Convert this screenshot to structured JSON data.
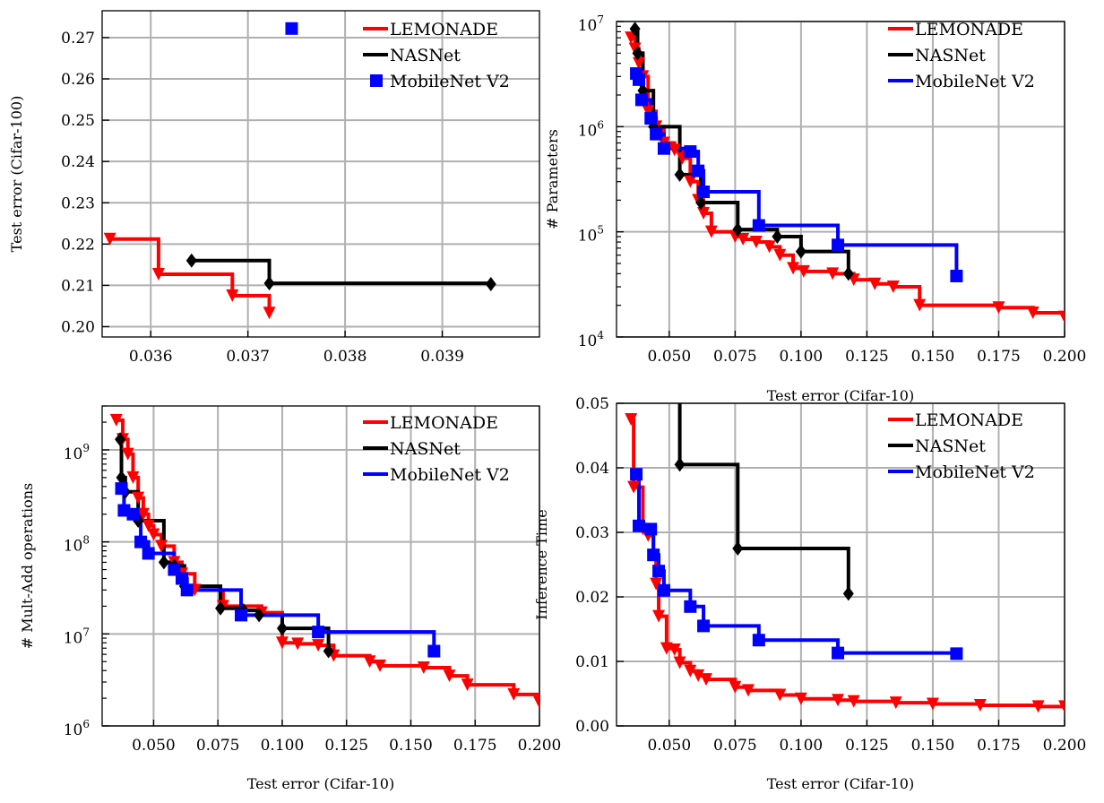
{
  "colors": {
    "LEMONADE": "#ff0000",
    "NASNet": "#000000",
    "MobileNet V2": "#0000ff"
  },
  "chart_data": [
    {
      "type": "line",
      "xlabel": "",
      "ylabel": "Test error (Cifar-100)",
      "xlim": [
        0.0355,
        0.04
      ],
      "ylim": [
        0.1975,
        0.2765
      ],
      "xscale": "linear",
      "yscale": "linear",
      "xticks": [
        0.036,
        0.037,
        0.038,
        0.039
      ],
      "xtick_labels": [
        "0.036",
        "0.037",
        "0.038",
        "0.039"
      ],
      "yticks": [
        0.2,
        0.21,
        0.22,
        0.23,
        0.24,
        0.25,
        0.26,
        0.27
      ],
      "ytick_labels": [
        "0.20",
        "0.21",
        "0.22",
        "0.23",
        "0.24",
        "0.25",
        "0.26",
        "0.27"
      ],
      "grid": true,
      "legend": "top-right",
      "series": [
        {
          "name": "LEMONADE",
          "marker": "triangle-down",
          "step": true,
          "x": [
            0.03558,
            0.03608,
            0.03684,
            0.03722
          ],
          "y": [
            0.2212,
            0.2127,
            0.2075,
            0.2033
          ]
        },
        {
          "name": "NASNet",
          "marker": "diamond",
          "step": true,
          "x": [
            0.03642,
            0.03722,
            0.0395
          ],
          "y": [
            0.216,
            0.2105,
            0.2103
          ]
        },
        {
          "name": "MobileNet V2",
          "marker": "square",
          "step": false,
          "x": [
            0.03745
          ],
          "y": [
            0.2722
          ]
        }
      ]
    },
    {
      "type": "line",
      "xlabel": "Test error (Cifar-10)",
      "ylabel": "# Parameters",
      "xlim": [
        0.03,
        0.2
      ],
      "ylim": [
        10000,
        10000000
      ],
      "xscale": "linear",
      "yscale": "log",
      "xticks": [
        0.05,
        0.075,
        0.1,
        0.125,
        0.15,
        0.175,
        0.2
      ],
      "xtick_labels": [
        "0.050",
        "0.075",
        "0.100",
        "0.125",
        "0.150",
        "0.175",
        "0.200"
      ],
      "yticks": [
        10000,
        100000,
        1000000,
        10000000
      ],
      "ytick_labels": [
        {
          "base": "10",
          "exp": "4"
        },
        {
          "base": "10",
          "exp": "5"
        },
        {
          "base": "10",
          "exp": "6"
        },
        {
          "base": "10",
          "exp": "7"
        }
      ],
      "grid": true,
      "legend": "top-right",
      "series": [
        {
          "name": "LEMONADE",
          "marker": "triangle-down",
          "step": true,
          "x": [
            0.0355,
            0.037,
            0.0385,
            0.04,
            0.042,
            0.045,
            0.048,
            0.052,
            0.055,
            0.058,
            0.061,
            0.063,
            0.066,
            0.075,
            0.078,
            0.083,
            0.088,
            0.092,
            0.097,
            0.101,
            0.112,
            0.12,
            0.128,
            0.135,
            0.145,
            0.175,
            0.188,
            0.2
          ],
          "y": [
            7000000,
            5500000,
            4000000,
            3000000,
            1400000,
            1000000,
            700000,
            600000,
            500000,
            300000,
            200000,
            150000,
            100000,
            90000,
            85000,
            80000,
            72000,
            60000,
            45000,
            42000,
            40000,
            35000,
            32000,
            30000,
            20000,
            19000,
            17000,
            15500
          ]
        },
        {
          "name": "NASNet",
          "marker": "diamond",
          "step": true,
          "x": [
            0.037,
            0.038,
            0.04,
            0.044,
            0.054,
            0.062,
            0.076,
            0.091,
            0.1,
            0.118
          ],
          "y": [
            8500000,
            5000000,
            2200000,
            1000000,
            350000,
            190000,
            105000,
            90000,
            65000,
            40000
          ]
        },
        {
          "name": "MobileNet V2",
          "marker": "square",
          "step": true,
          "x": [
            0.0375,
            0.0385,
            0.0395,
            0.043,
            0.045,
            0.048,
            0.058,
            0.061,
            0.063,
            0.084,
            0.114,
            0.159
          ],
          "y": [
            3200000,
            2800000,
            1800000,
            1200000,
            850000,
            620000,
            580000,
            380000,
            240000,
            115000,
            75000,
            38000
          ]
        }
      ]
    },
    {
      "type": "line",
      "xlabel": "Test error (Cifar-10)",
      "ylabel": "# Mult-Add operations",
      "xlim": [
        0.03,
        0.2
      ],
      "ylim": [
        1000000,
        3000000000
      ],
      "xscale": "linear",
      "yscale": "log",
      "xticks": [
        0.05,
        0.075,
        0.1,
        0.125,
        0.15,
        0.175,
        0.2
      ],
      "xtick_labels": [
        "0.050",
        "0.075",
        "0.100",
        "0.125",
        "0.150",
        "0.175",
        "0.200"
      ],
      "yticks": [
        1000000,
        10000000,
        100000000,
        1000000000
      ],
      "ytick_labels": [
        {
          "base": "10",
          "exp": "6"
        },
        {
          "base": "10",
          "exp": "7"
        },
        {
          "base": "10",
          "exp": "8"
        },
        {
          "base": "10",
          "exp": "9"
        }
      ],
      "grid": true,
      "legend": "top-right",
      "series": [
        {
          "name": "LEMONADE",
          "marker": "triangle-down",
          "step": true,
          "x": [
            0.0355,
            0.038,
            0.04,
            0.042,
            0.044,
            0.046,
            0.048,
            0.05,
            0.053,
            0.058,
            0.061,
            0.066,
            0.077,
            0.092,
            0.1,
            0.106,
            0.114,
            0.12,
            0.134,
            0.138,
            0.155,
            0.165,
            0.172,
            0.19,
            0.2
          ],
          "y": [
            2100000000,
            1300000000,
            900000000,
            500000000,
            300000000,
            200000000,
            150000000,
            120000000,
            90000000,
            60000000,
            45000000,
            30000000,
            20000000,
            17000000,
            8000000,
            7800000,
            7500000,
            5800000,
            5000000,
            4500000,
            4300000,
            3500000,
            2800000,
            2200000,
            1800000
          ]
        },
        {
          "name": "NASNet",
          "marker": "diamond",
          "step": true,
          "x": [
            0.037,
            0.0375,
            0.039,
            0.044,
            0.054,
            0.058,
            0.062,
            0.076,
            0.085,
            0.091,
            0.1,
            0.118
          ],
          "y": [
            1300000000,
            500000000,
            350000000,
            170000000,
            60000000,
            55000000,
            33000000,
            19000000,
            18000000,
            16000000,
            11500000,
            6500000
          ]
        },
        {
          "name": "MobileNet V2",
          "marker": "square",
          "step": true,
          "x": [
            0.0375,
            0.0385,
            0.042,
            0.045,
            0.048,
            0.058,
            0.061,
            0.063,
            0.084,
            0.114,
            0.159
          ],
          "y": [
            380000000,
            220000000,
            200000000,
            100000000,
            75000000,
            50000000,
            40000000,
            30000000,
            16000000,
            10500000,
            6500000
          ]
        }
      ]
    },
    {
      "type": "line",
      "xlabel": "Test error (Cifar-10)",
      "ylabel": "Inference Time",
      "xlim": [
        0.03,
        0.2
      ],
      "ylim": [
        0.0,
        0.05
      ],
      "xscale": "linear",
      "yscale": "linear",
      "xticks": [
        0.05,
        0.075,
        0.1,
        0.125,
        0.15,
        0.175,
        0.2
      ],
      "xtick_labels": [
        "0.050",
        "0.075",
        "0.100",
        "0.125",
        "0.150",
        "0.175",
        "0.200"
      ],
      "yticks": [
        0.0,
        0.01,
        0.02,
        0.03,
        0.04,
        0.05
      ],
      "ytick_labels": [
        "0.00",
        "0.01",
        "0.02",
        "0.03",
        "0.04",
        "0.05"
      ],
      "grid": true,
      "legend": "top-right",
      "series": [
        {
          "name": "LEMONADE",
          "marker": "triangle-down",
          "step": true,
          "x": [
            0.0355,
            0.0365,
            0.04,
            0.042,
            0.044,
            0.045,
            0.046,
            0.049,
            0.052,
            0.054,
            0.058,
            0.061,
            0.064,
            0.075,
            0.08,
            0.092,
            0.1,
            0.114,
            0.12,
            0.136,
            0.15,
            0.168,
            0.19,
            0.2
          ],
          "y": [
            0.0475,
            0.037,
            0.0305,
            0.0295,
            0.0265,
            0.022,
            0.017,
            0.012,
            0.0118,
            0.0098,
            0.0085,
            0.0078,
            0.0072,
            0.006,
            0.0055,
            0.0048,
            0.0042,
            0.004,
            0.0038,
            0.0036,
            0.0034,
            0.0032,
            0.003,
            0.003
          ]
        },
        {
          "name": "NASNet",
          "marker": "diamond",
          "step": true,
          "x": [
            0.054,
            0.054,
            0.076,
            0.118
          ],
          "y": [
            0.05,
            0.0405,
            0.0275,
            0.0205
          ]
        },
        {
          "name": "MobileNet V2",
          "marker": "square",
          "step": true,
          "x": [
            0.0375,
            0.0385,
            0.043,
            0.044,
            0.046,
            0.048,
            0.058,
            0.063,
            0.084,
            0.114,
            0.159
          ],
          "y": [
            0.039,
            0.031,
            0.0305,
            0.0265,
            0.024,
            0.021,
            0.0185,
            0.0155,
            0.0133,
            0.0113,
            0.0112
          ]
        }
      ]
    }
  ]
}
